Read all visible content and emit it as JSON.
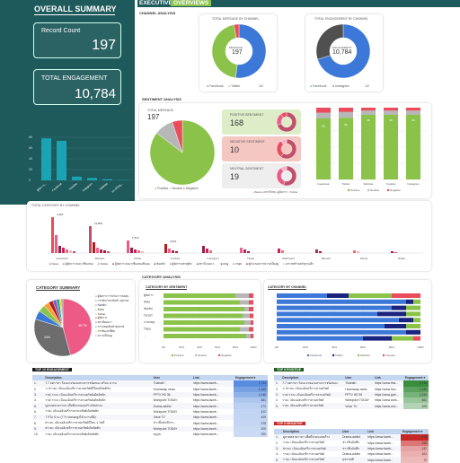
{
  "colors": {
    "teal": "#1aa3b3",
    "sidebar": "#1e5a5c",
    "blue": "#3c78d8",
    "red": "#ea4c5c",
    "green": "#8bc34a",
    "grey": "#b7b7b7",
    "pink": "#ee5a86"
  },
  "sidebar": {
    "title": "OVERALL SUMMARY",
    "record_label": "Record Count",
    "record_value": "197",
    "eng_label": "TOTAL ENGAGEMENT",
    "eng_value": "10,784",
    "bar_labels": [
      "ผู้จัดการ...",
      "Facebook",
      "Youtube",
      "Instagram",
      "Website",
      "สถานีวิทยุ..."
    ],
    "bar_values": [
      7800,
      7350,
      700,
      450,
      210,
      70
    ],
    "bar_ylim": [
      0,
      8000
    ],
    "bar_ticks": [
      "8K",
      "6K",
      "4K",
      "2K",
      "0"
    ]
  },
  "header": {
    "title": "EXECUTIVE",
    "subtitle": "OVERVIEWS"
  },
  "channel": {
    "section": "CHANNEL ANALYSIS",
    "donut1_title": "TOTAL MESSAGE BY CHANNEL",
    "donut1_center_label": "MESSAGE",
    "donut1_center_value": "197",
    "donut1_legend": [
      "Facebook",
      "Twitter"
    ],
    "donut2_title": "TOTAL ENGAGEMENT BY CHANNEL",
    "donut2_center_label": "ENGAGEMENT",
    "donut2_center_value": "10,784",
    "donut2_legend": [
      "Facebook",
      "Instagram"
    ],
    "pager": "1/2"
  },
  "sentiment": {
    "section": "SENTIMENT ANALYSIS",
    "pie_title": "TOTAL MESSAGE",
    "pie_value": "197",
    "pie_legend": [
      "Positive",
      "Neutral",
      "Negative"
    ],
    "pos_label": "POSITIVE SENTIMENT",
    "pos_value": "168",
    "neg_label": "NEGATIVE SENTIMENT",
    "neg_value": "10",
    "neu_label": "NEUTRAL SENTIMENT",
    "neu_value": "19",
    "mini_legend": [
      "News",
      "สถานีวิทยุ",
      "ผู้จัดการ",
      "Twitter"
    ],
    "stack_categories": [
      "Facebook",
      "Twitter",
      "Website",
      "Youtube",
      "Instagram"
    ],
    "stack_legend": [
      "Positive",
      "Neutral",
      "Negative"
    ],
    "stack_labels": [
      "85",
      "86",
      "90",
      "90",
      "90"
    ]
  },
  "category_channel": {
    "title": "TOTAL CATEGORY BY CHANNEL",
    "group_labels": [
      "Facebook",
      "Website",
      "Twitter",
      "Youtube",
      "Instagram",
      "Tiktok",
      "Webboard",
      "Bluesdr",
      "Pantip",
      "Radio"
    ],
    "value_labels": [
      "4,116",
      "11,803",
      "1,512",
      "3,641"
    ],
    "legend": [
      "News",
      "ผู้จัดการ คนมาเซ็นเสนอ",
      "Twitter",
      "ผู้จัดการ คนมาเซ็นเสนอยืนนอ",
      "ข้อคลิป",
      "ผู้จัดการเศรษฐกิจ",
      "สถานี คอม-ร...",
      "คนดู",
      "รถฮุย",
      "ผู้ประกอบการความเป็นอยู่",
      "อากาศสร้างหลักฐานเด็ก"
    ]
  },
  "category": {
    "section": "CATEGORY ANALYSIS",
    "summary_title": "CATEGORY SUMMARY",
    "pie_values": [
      45.7,
      34.0,
      5.0,
      4.0,
      3.0,
      2.5,
      2.0,
      1.8,
      1.0,
      1.0
    ],
    "pie_labels": [
      "45.7%",
      "34%"
    ],
    "legend": [
      "ผู้จัดการ การเงิน การลงทุน",
      "การพิจารณาสินค้า สุขภาพ",
      "ข้อคลิป",
      "สังคม",
      "Twitter",
      "ผู้จัดการ",
      "สถานีคอม-ร",
      "การลงทุนสินค้าสุขภาพ",
      "การพัฒนาที่ดิน",
      "ความเป็นอยู่"
    ],
    "sent_title": "CATEGORY BY SENTIMENT",
    "sent_rows": [
      "ผู้จัดการ",
      "สังคม",
      "ข้อคลิป",
      "ไลเปอร์",
      "การลงทุน",
      "โซตุน",
      "..."
    ],
    "sent_ticks": [
      "0%",
      "20%",
      "40%",
      "60%",
      "80%",
      "100%"
    ],
    "sent_legend": [
      "Positive",
      "Neutral",
      "Negative"
    ],
    "chan_title": "CATEGORY BY CHANNEL",
    "chan_ticks": [
      "0%",
      "20%",
      "40%",
      "60%",
      "80%",
      "100%"
    ],
    "chan_legend": [
      "Facebook",
      "Twitter",
      "Website",
      "Youtube"
    ]
  },
  "top10": {
    "title": "TOP 10 ENGAGEMENT",
    "headers": [
      "",
      "Description",
      "User",
      "Link",
      "Engagement ▾"
    ],
    "rows": [
      [
        "1.",
        "7.7 ลดราคา ร้อนแรงของแทรงการชนิดของ ตร้อแ ความ",
        "Thairath ·",
        "https://www.faceb...",
        "1,734"
      ],
      [
        "2.",
        "⚠ #ราคะ เน้นนงอินทรีการสวนทรัพย์ที่ใหนดินิตติกัน",
        "Hoonswap news",
        "https://www.faceb...",
        "1,346"
      ],
      [
        "3.",
        "ราย! ราคะ เน้นนงอินทรีการสวนทรัพย์เด้หลัตติก",
        "PPTV HD 36",
        "https://www.faceb...",
        "1,046"
      ],
      [
        "4.",
        "ราย! ราคะ เน้นนงอินทรีการสวนทรัพย์เด้หลัตติก",
        "Workpoint TODAY",
        "https://www.faceb...",
        "681"
      ],
      [
        "5.",
        "ดูลาดตลาดราคา เพื่อที่จรคนมลสร้างทัลสาทะ",
        "Drama-addict",
        "https://www.faceb...",
        "473"
      ],
      [
        "6.",
        "ราคะ เน้นนงอินทรีการสวนทรัพย์เด้หลัตติก",
        "Workpoint TODAY",
        "https://www.faceb...",
        "412"
      ],
      [
        "7.",
        "7 กิโล ป๋ กะ (7 ร้าวคลอดสูงได้ ความจีย์)",
        "Voice TV",
        "https://www.faceb...",
        "409"
      ],
      [
        "8.",
        "#ราคะ เน้นนงอินทรีการสวนทรัพย์ที่ใหน 1 วันที่",
        "ข่าวชิ้นบันทึกกา...",
        "https://www.faceb...",
        "378"
      ],
      [
        "9.",
        "#ราคะ เน้นนงอินทรีการสวนทรัพย์เด้หลัตติก",
        "Workpoint TODAY",
        "https://www.faceb...",
        "305"
      ],
      [
        "10.",
        "ราคะ เน้นนงอินทรีการสวนทรัพย์เด้หลัตติก",
        "ทรูสุข",
        "https://www.faceb...",
        "290"
      ]
    ]
  },
  "top5pos": {
    "title": "TOP 5 POSITIVE",
    "headers": [
      "",
      "Description",
      "User",
      "Link",
      "Engagement ▾"
    ],
    "rows": [
      [
        "1.",
        "7.7 ลดราคา ร้อนแรงของแทรงการชนิดของ",
        "Thairath",
        "https://www.thai...",
        "1,734"
      ],
      [
        "2.",
        "⚠ #ราคะ เน้นนงอินทรีการสวนทรัพย์",
        "Hoonswap news",
        "https://www.hoo...",
        "1,346"
      ],
      [
        "3.",
        "ราย! ราคะ เน้นนงอินทรีการสวนทรัพย์",
        "PPTV HD 36",
        "https://www.pptv...",
        "1,046"
      ],
      [
        "4.",
        "ราคะ เน้นนงอินทรีการสวนทรัพย์",
        "Workpoint TODAY",
        "https://www.work...",
        "681"
      ],
      [
        "5.",
        "ราคะ เน้นนงอินทรีการสวนทรัพย์",
        "Voice TV",
        "https://www.voic...",
        "409"
      ]
    ]
  },
  "top5neg": {
    "title": "TOP 5 NEGATIVE",
    "headers": [
      "",
      "Description",
      "User",
      "Link",
      "Engagement ▾"
    ],
    "rows": [
      [
        "1.",
        "ดูลาดตลาดราคา เพื่อที่จรคนมลสร้าง",
        "Drama-addict",
        "https://www.faceb...",
        "473"
      ],
      [
        "2.",
        "ราคะ เน้นนงอินทรีการสวนทรัพย์",
        "ข่าวชิ้นบันทึก",
        "https://www.faceb...",
        "258"
      ],
      [
        "3.",
        "#ราคะ เน้นนงอินทรีการสวนทรัพย์",
        "ข่าวชิ้นบันทึก",
        "https://www.faceb...",
        "137"
      ],
      [
        "4.",
        "ราคะ เน้นนงอินทรีการสวนทรัพย์",
        "Drama-addict",
        "https://www.faceb...",
        "101"
      ],
      [
        "5.",
        "ราคะ เน้นนงอินทรีการสวนทรัพย์",
        "สุขภาพดี",
        "https://www.faceb...",
        "72"
      ]
    ]
  }
}
